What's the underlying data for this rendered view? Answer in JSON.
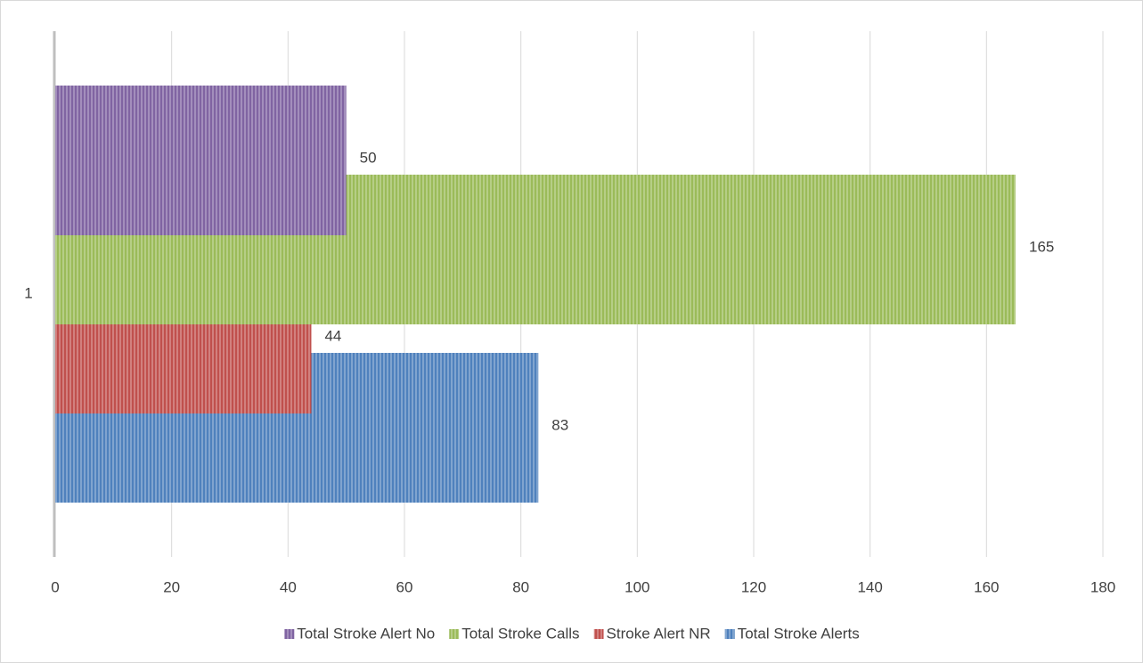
{
  "chart_data": {
    "type": "bar",
    "orientation": "horizontal",
    "categories": [
      "1"
    ],
    "series": [
      {
        "name": "Total Stroke Alert No",
        "color": "#8064a2",
        "values": [
          50
        ]
      },
      {
        "name": "Total Stroke Calls",
        "color": "#9bbb59",
        "values": [
          165
        ]
      },
      {
        "name": "Stroke Alert NR",
        "color": "#c0504d",
        "values": [
          44
        ]
      },
      {
        "name": "Total Stroke Alerts",
        "color": "#4f81bd",
        "values": [
          83
        ]
      }
    ],
    "xlim": [
      0,
      180
    ],
    "xticks": [
      0,
      20,
      40,
      60,
      80,
      100,
      120,
      140,
      160,
      180
    ],
    "grid": true,
    "legend": "bottom",
    "pattern": "vertical-stripes"
  }
}
